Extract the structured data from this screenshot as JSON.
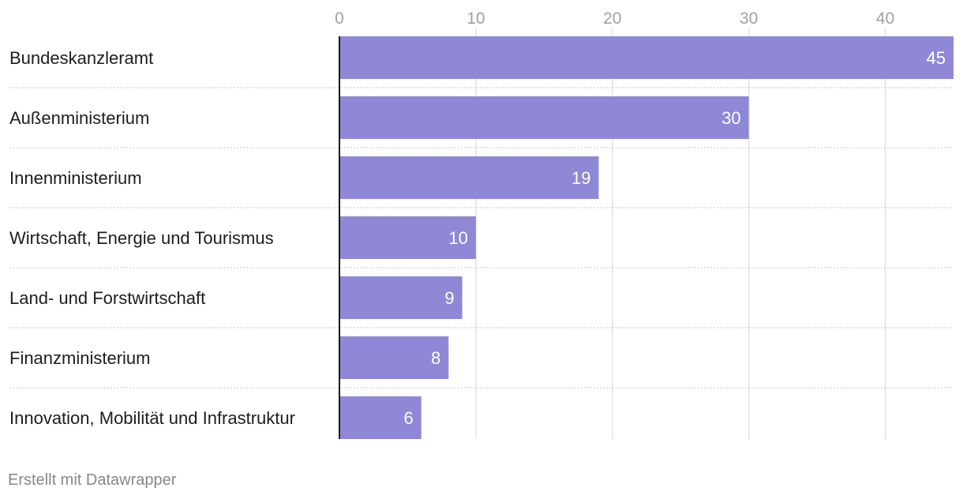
{
  "chart_data": {
    "type": "bar",
    "orientation": "horizontal",
    "categories": [
      "Bundeskanzleramt",
      "Außenministerium",
      "Innenministerium",
      "Wirtschaft, Energie und Tourismus",
      "Land- und Forstwirtschaft",
      "Finanzministerium",
      "Innovation, Mobilität und Infrastruktur"
    ],
    "values": [
      45,
      30,
      19,
      10,
      9,
      8,
      6
    ],
    "xlim": [
      0,
      45
    ],
    "xticks": [
      0,
      10,
      20,
      30,
      40
    ],
    "axis_position": "top",
    "grid": true,
    "data_labels": true,
    "colors": {
      "bar": "#8f88d6",
      "bar_label": "#ffffff",
      "category_label": "#1d1d1d",
      "tick_label": "#a0a0a0",
      "grid": "#e3e3e3",
      "row_divider": "#cfcfcf",
      "baseline": "#1a1a1a"
    }
  },
  "footer": {
    "credit": "Erstellt mit Datawrapper"
  }
}
